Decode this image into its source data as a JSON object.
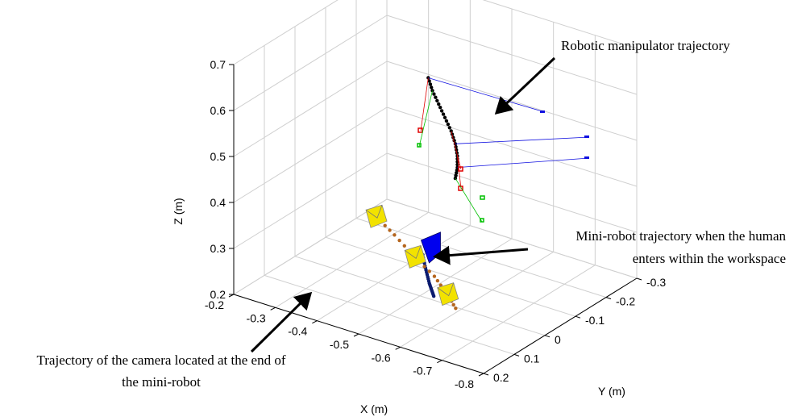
{
  "chart_data": {
    "type": "scatter3d",
    "xlabel": "X (m)",
    "ylabel": "Y (m)",
    "zlabel": "Z (m)",
    "xlim": [
      -0.8,
      -0.2
    ],
    "ylim": [
      -0.3,
      0.2
    ],
    "zlim": [
      0.2,
      0.7
    ],
    "x_ticks": [
      "-0.2",
      "-0.3",
      "-0.4",
      "-0.5",
      "-0.6",
      "-0.7",
      "-0.8"
    ],
    "y_ticks": [
      "-0.3",
      "-0.2",
      "-0.1",
      "0",
      "0.1",
      "0.2"
    ],
    "z_ticks": [
      "0.2",
      "0.3",
      "0.4",
      "0.5",
      "0.6",
      "0.7"
    ],
    "grid": true,
    "annotations": {
      "manipulator": "Robotic manipulator trajectory",
      "minirobot_line1": "Mini-robot trajectory when the human",
      "minirobot_line2": "enters within the workspace",
      "camera_line1": "Trajectory of the camera located at the end of",
      "camera_line2": "the mini-robot"
    },
    "series": [
      {
        "role": "manipulator",
        "color": "#000000",
        "points": [
          [
            -0.52,
            0.0,
            0.68
          ],
          [
            -0.53,
            0.0,
            0.655
          ],
          [
            -0.545,
            0.0,
            0.63
          ],
          [
            -0.56,
            0.0,
            0.605
          ],
          [
            -0.575,
            0.0,
            0.58
          ],
          [
            -0.585,
            0.0,
            0.555
          ],
          [
            -0.59,
            0.0,
            0.53
          ],
          [
            -0.59,
            0.0,
            0.505
          ],
          [
            -0.585,
            0.0,
            0.48
          ]
        ]
      },
      {
        "role": "minirobot",
        "color": "#0a1a6e",
        "points": [
          [
            -0.47,
            -0.05,
            0.26
          ],
          [
            -0.49,
            -0.03,
            0.25
          ],
          [
            -0.51,
            -0.01,
            0.245
          ],
          [
            -0.53,
            0.01,
            0.24
          ],
          [
            -0.55,
            0.03,
            0.24
          ],
          [
            -0.57,
            0.05,
            0.24
          ]
        ]
      },
      {
        "role": "camera",
        "color": "#b5651d",
        "points": [
          [
            -0.32,
            -0.1,
            0.28
          ],
          [
            -0.38,
            -0.08,
            0.265
          ],
          [
            -0.45,
            -0.05,
            0.25
          ],
          [
            -0.52,
            -0.02,
            0.24
          ],
          [
            -0.58,
            0.02,
            0.235
          ],
          [
            -0.63,
            0.06,
            0.235
          ]
        ]
      }
    ],
    "colors": {
      "camera_marker": "#f2e200",
      "robot_marker": "#0000ee",
      "red_frame": "#e00000",
      "green_frame": "#00c000",
      "blue_frame": "#1010e0"
    }
  }
}
